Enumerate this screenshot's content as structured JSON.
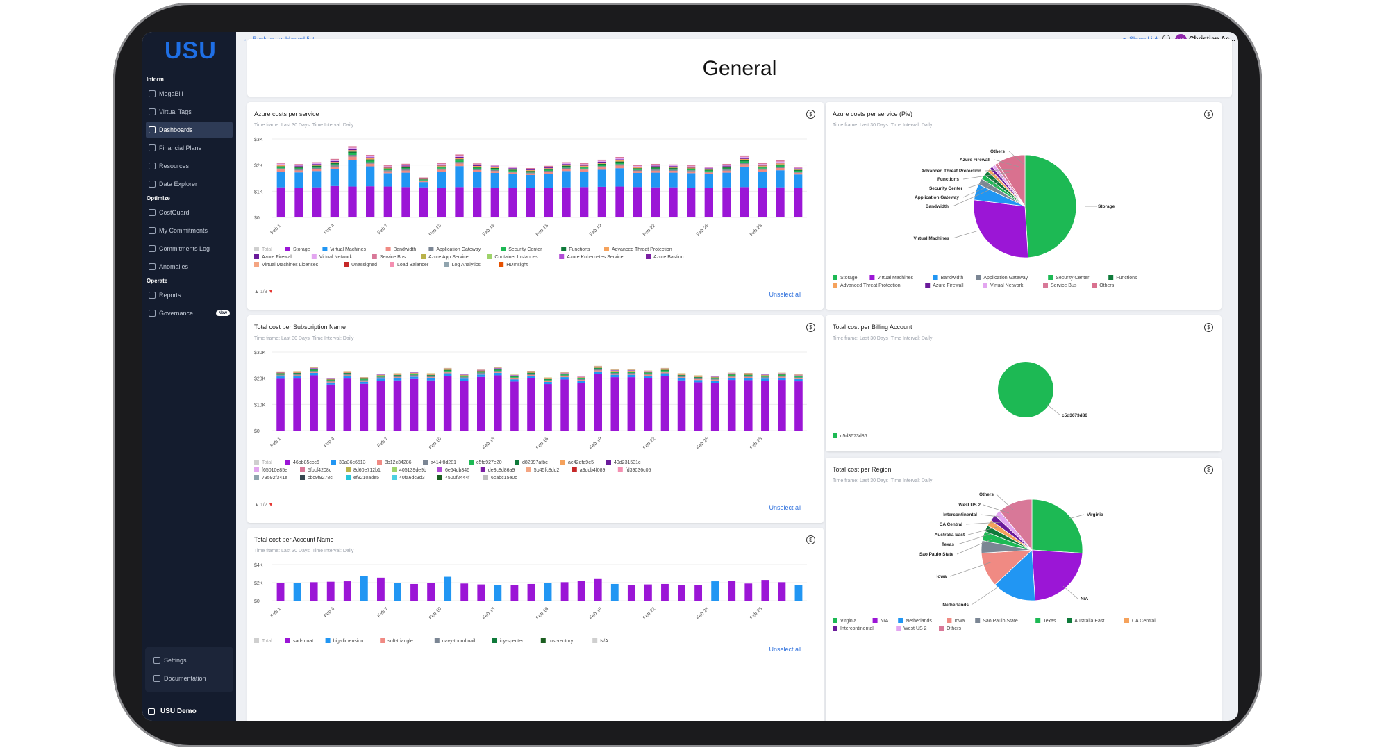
{
  "app": {
    "logo": "USU",
    "user_initials": "CA",
    "user_name": "Christian Ac...",
    "back_label": "Back to dashboard list",
    "share_label": "Share Link",
    "page_title": "General"
  },
  "sidebar": {
    "sections": [
      {
        "title": "Inform",
        "items": [
          {
            "label": "MegaBill"
          },
          {
            "label": "Virtual Tags"
          },
          {
            "label": "Dashboards",
            "active": true
          },
          {
            "label": "Financial Plans"
          },
          {
            "label": "Resources"
          },
          {
            "label": "Data Explorer"
          }
        ]
      },
      {
        "title": "Optimize",
        "items": [
          {
            "label": "CostGuard"
          },
          {
            "label": "My Commitments"
          },
          {
            "label": "Commitments Log"
          },
          {
            "label": "Anomalies"
          }
        ]
      },
      {
        "title": "Operate",
        "items": [
          {
            "label": "Reports"
          },
          {
            "label": "Governance",
            "badge": "New"
          }
        ]
      }
    ],
    "bottom": {
      "settings": "Settings",
      "documentation": "Documentation",
      "tenant": "USU Demo"
    }
  },
  "common": {
    "timeframe": "Time frame: Last 30 Days",
    "interval": "Time Interval: Daily",
    "unselect_all": "Unselect all"
  },
  "dates": [
    "Feb 1",
    "Feb 4",
    "Feb 7",
    "Feb 10",
    "Feb 13",
    "Feb 16",
    "Feb 19",
    "Feb 22",
    "Feb 25",
    "Feb 28"
  ],
  "cards": {
    "c1": {
      "title": "Azure costs per service",
      "pager": "1/3"
    },
    "c2": {
      "title": "Azure costs per service (Pie)"
    },
    "c3": {
      "title": "Total cost per Subscription Name",
      "pager": "1/2"
    },
    "c4": {
      "title": "Total cost per Billing Account"
    },
    "c5": {
      "title": "Total cost per Account Name"
    },
    "c6": {
      "title": "Total cost per Region"
    }
  },
  "chart_data": [
    {
      "type": "bar",
      "title": "Azure costs per service",
      "ylim": [
        0,
        3000
      ],
      "yticks": [
        "$0",
        "$1K",
        "$2K",
        "$3K"
      ],
      "categories_count": 30,
      "series": [
        {
          "name": "Virtual Machines",
          "color": "#9b16d6",
          "values": [
            1150,
            1130,
            1150,
            1200,
            1180,
            1190,
            1180,
            1160,
            1150,
            1140,
            1160,
            1150,
            1140,
            1130,
            1120,
            1130,
            1150,
            1160,
            1170,
            1180,
            1160,
            1150,
            1150,
            1140,
            1130,
            1150,
            1160,
            1140,
            1150,
            1140
          ]
        },
        {
          "name": "Storage",
          "color": "#2196f3",
          "values": [
            600,
            590,
            620,
            650,
            1020,
            760,
            510,
            550,
            200,
            600,
            800,
            580,
            560,
            520,
            500,
            540,
            620,
            590,
            650,
            700,
            540,
            560,
            560,
            550,
            520,
            560,
            780,
            600,
            650,
            500
          ]
        },
        {
          "name": "Bandwidth",
          "color": "#f08a83",
          "values": [
            80,
            75,
            80,
            90,
            120,
            100,
            70,
            80,
            40,
            80,
            100,
            75,
            70,
            65,
            60,
            70,
            80,
            75,
            90,
            100,
            70,
            75,
            70,
            70,
            65,
            75,
            95,
            80,
            85,
            65
          ]
        },
        {
          "name": "Application Gateway",
          "color": "#7b8694",
          "values": [
            45,
            40,
            45,
            50,
            70,
            60,
            40,
            45,
            25,
            45,
            60,
            45,
            40,
            40,
            35,
            40,
            45,
            40,
            50,
            55,
            40,
            45,
            40,
            40,
            40,
            45,
            55,
            45,
            50,
            40
          ]
        },
        {
          "name": "Security Center",
          "color": "#1db954",
          "values": [
            40,
            40,
            40,
            45,
            65,
            55,
            35,
            40,
            20,
            40,
            55,
            40,
            40,
            35,
            30,
            35,
            40,
            40,
            45,
            50,
            35,
            40,
            40,
            35,
            35,
            40,
            50,
            40,
            45,
            35
          ]
        },
        {
          "name": "Functions",
          "color": "#0f7a3a",
          "values": [
            40,
            35,
            40,
            45,
            60,
            50,
            35,
            40,
            20,
            40,
            50,
            40,
            35,
            35,
            30,
            35,
            40,
            35,
            45,
            50,
            35,
            40,
            35,
            35,
            30,
            40,
            50,
            40,
            45,
            35
          ]
        },
        {
          "name": "Advanced Threat Protection",
          "color": "#f5a25c",
          "values": [
            35,
            35,
            35,
            40,
            55,
            45,
            30,
            35,
            20,
            35,
            45,
            35,
            35,
            30,
            30,
            30,
            35,
            35,
            40,
            45,
            30,
            35,
            35,
            30,
            30,
            35,
            45,
            35,
            40,
            30
          ]
        },
        {
          "name": "Azure Firewall",
          "color": "#6a1b9a",
          "values": [
            30,
            30,
            30,
            35,
            50,
            40,
            30,
            30,
            15,
            30,
            40,
            30,
            30,
            25,
            25,
            30,
            30,
            30,
            35,
            40,
            30,
            30,
            30,
            30,
            25,
            30,
            40,
            30,
            35,
            25
          ]
        },
        {
          "name": "Virtual Network",
          "color": "#e3a6f0",
          "values": [
            30,
            30,
            30,
            35,
            45,
            40,
            25,
            30,
            15,
            30,
            40,
            30,
            30,
            25,
            25,
            25,
            30,
            30,
            35,
            40,
            25,
            30,
            30,
            25,
            25,
            30,
            40,
            30,
            35,
            25
          ]
        },
        {
          "name": "Service Bus",
          "color": "#d87898",
          "values": [
            40,
            35,
            40,
            45,
            60,
            50,
            35,
            40,
            20,
            40,
            55,
            40,
            35,
            35,
            30,
            35,
            40,
            35,
            45,
            50,
            35,
            40,
            35,
            35,
            30,
            40,
            50,
            40,
            45,
            35
          ]
        }
      ],
      "legend": [
        "Total",
        "Storage",
        "Virtual Machines",
        "Bandwidth",
        "Application Gateway",
        "Security Center",
        "Functions",
        "Advanced Threat Protection",
        "Azure Firewall",
        "Virtual Network",
        "Service Bus",
        "Azure App Service",
        "Container Instances",
        "Azure Kubernetes Service",
        "Azure Bastion",
        "Virtual Machines Licenses",
        "Unassigned",
        "Load Balancer",
        "Log Analytics",
        "HDInsight"
      ],
      "legend_colors": [
        "#cfcfcf",
        "#9b16d6",
        "#2196f3",
        "#f08a83",
        "#7b8694",
        "#1db954",
        "#0f7a3a",
        "#f5a25c",
        "#6a1b9a",
        "#e3a6f0",
        "#d87898",
        "#b9b24a",
        "#9ed36a",
        "#b14cd6",
        "#7b1fa2",
        "#f4a582",
        "#c62828",
        "#f48fb1",
        "#90a4ae",
        "#e65100"
      ]
    },
    {
      "type": "pie",
      "title": "Azure costs per service (Pie)",
      "slices": [
        {
          "label": "Storage",
          "value": 49,
          "color": "#1db954"
        },
        {
          "label": "Virtual Machines",
          "value": 28,
          "color": "#9b16d6"
        },
        {
          "label": "Bandwidth",
          "value": 5,
          "color": "#2196f3"
        },
        {
          "label": "Application Gateway",
          "value": 2,
          "color": "#7b8694"
        },
        {
          "label": "Security Center",
          "value": 1.5,
          "color": "#1db954"
        },
        {
          "label": "Functions",
          "value": 1.5,
          "color": "#0f7a3a"
        },
        {
          "label": "Advanced Threat Protection",
          "value": 1,
          "color": "#f5a25c"
        },
        {
          "label": "Azure Firewall",
          "value": 1,
          "color": "#6a1b9a"
        },
        {
          "label": "Virtual Network",
          "value": 1,
          "color": "#e3a6f0"
        },
        {
          "label": "Service Bus",
          "value": 1,
          "color": "#d87898"
        },
        {
          "label": "Others",
          "value": 9,
          "color": "#d9718f"
        }
      ],
      "outer_labels": [
        "Others",
        "Azure Firewall",
        "Advanced Threat Protection",
        "Functions",
        "Security Center",
        "Application Gateway",
        "Bandwidth",
        "Storage",
        "Virtual Machines"
      ],
      "legend": [
        "Storage",
        "Virtual Machines",
        "Bandwidth",
        "Application Gateway",
        "Security Center",
        "Functions",
        "Advanced Threat Protection",
        "Azure Firewall",
        "Virtual Network",
        "Service Bus",
        "Others"
      ]
    },
    {
      "type": "bar",
      "title": "Total cost per Subscription Name",
      "ylim": [
        0,
        30000
      ],
      "yticks": [
        "$0",
        "$10K",
        "$20K",
        "$30K"
      ],
      "totals": [
        22500,
        22600,
        24000,
        20000,
        22600,
        20300,
        21600,
        21800,
        22400,
        21800,
        23800,
        21600,
        23300,
        24000,
        21300,
        22700,
        20200,
        22200,
        20700,
        24600,
        23200,
        23200,
        22800,
        23800,
        21800,
        21000,
        20800,
        22000,
        21900,
        21600,
        22000,
        21400
      ],
      "series_colors": [
        "#9b16d6",
        "#2196f3",
        "#f08a83",
        "#7b8694",
        "#1db954",
        "#0f7a3a",
        "#f5a25c",
        "#6a1b9a",
        "#e3a6f0",
        "#d87898",
        "#b9b24a"
      ],
      "legend": [
        "Total",
        "46bb85ccc6",
        "30a36c6513",
        "8b12c34286",
        "a414f8d281",
        "c5fd927e20",
        "d82997afbe",
        "ae42dfa9e5",
        "40d231531c",
        "f65010e85e",
        "5fbcf4208c",
        "8d60e712b1",
        "405139de9b",
        "6e64db346",
        "de3c8d86a9",
        "5b45fc8dd2",
        "a9dcb4f089",
        "fd39036c05",
        "73592f341e",
        "cbc9f9278c",
        "ef8210ade5",
        "40fa6dc3d3",
        "4500f2444f",
        "6cabc15e0c"
      ],
      "legend_colors": [
        "#cfcfcf",
        "#9b16d6",
        "#2196f3",
        "#f08a83",
        "#7b8694",
        "#1db954",
        "#0f7a3a",
        "#f5a25c",
        "#6a1b9a",
        "#e3a6f0",
        "#d87898",
        "#b9b24a",
        "#9ed36a",
        "#b14cd6",
        "#7b1fa2",
        "#f4a582",
        "#c62828",
        "#f48fb1",
        "#90a4ae",
        "#37474f",
        "#26c6da",
        "#4dd0e1",
        "#1b5e20",
        "#bdbdbd"
      ]
    },
    {
      "type": "pie",
      "title": "Total cost per Billing Account",
      "slices": [
        {
          "label": "c5d3673d86",
          "value": 100,
          "color": "#1db954"
        }
      ]
    },
    {
      "type": "bar",
      "title": "Total cost per Account Name",
      "ylim": [
        0,
        4000
      ],
      "yticks": [
        "$0",
        "$2K",
        "$4K"
      ],
      "values": [
        1950,
        1950,
        2050,
        2100,
        2150,
        2700,
        2550,
        1950,
        1850,
        1950,
        2650,
        1900,
        1800,
        1700,
        1750,
        1850,
        1950,
        2050,
        2200,
        2400,
        1850,
        1750,
        1800,
        1850,
        1750,
        1700,
        2150,
        2200,
        1900,
        2300,
        2050,
        1750
      ],
      "colors": [
        "#9b16d6",
        "#2196f3",
        "#9b16d6",
        "#9b16d6",
        "#9b16d6",
        "#2196f3",
        "#9b16d6",
        "#2196f3",
        "#9b16d6",
        "#9b16d6",
        "#2196f3",
        "#9b16d6",
        "#9b16d6",
        "#2196f3",
        "#9b16d6",
        "#9b16d6",
        "#2196f3",
        "#9b16d6",
        "#9b16d6",
        "#9b16d6",
        "#2196f3",
        "#9b16d6",
        "#9b16d6",
        "#9b16d6",
        "#9b16d6",
        "#9b16d6",
        "#2196f3",
        "#9b16d6",
        "#9b16d6",
        "#9b16d6",
        "#9b16d6",
        "#2196f3"
      ],
      "legend": [
        "Total",
        "sad-moat",
        "big-dimension",
        "soft-triangle",
        "navy-thumbnail",
        "icy-specter",
        "rust-rectory",
        "N/A"
      ],
      "legend_colors": [
        "#cfcfcf",
        "#9b16d6",
        "#2196f3",
        "#f08a83",
        "#7b8694",
        "#0f7a3a",
        "#1b5e20",
        "#cfcfcf"
      ]
    },
    {
      "type": "pie",
      "title": "Total cost per Region",
      "slices": [
        {
          "label": "Virginia",
          "value": 26,
          "color": "#1db954"
        },
        {
          "label": "N/A",
          "value": 23,
          "color": "#9b16d6"
        },
        {
          "label": "Netherlands",
          "value": 14,
          "color": "#2196f3"
        },
        {
          "label": "Iowa",
          "value": 11,
          "color": "#f08a83"
        },
        {
          "label": "Sao Paulo State",
          "value": 4,
          "color": "#7b8694"
        },
        {
          "label": "Texas",
          "value": 3,
          "color": "#1db954"
        },
        {
          "label": "Australia East",
          "value": 2,
          "color": "#0f7a3a"
        },
        {
          "label": "CA Central",
          "value": 2,
          "color": "#f5a25c"
        },
        {
          "label": "Intercontinental",
          "value": 2,
          "color": "#6a1b9a"
        },
        {
          "label": "West US 2",
          "value": 2,
          "color": "#e3a6f0"
        },
        {
          "label": "Others",
          "value": 11,
          "color": "#d87898"
        }
      ],
      "outer_labels": [
        "Others",
        "West US 2",
        "Intercontinental",
        "CA Central",
        "Australia East",
        "Texas",
        "Sao Paulo State",
        "Iowa",
        "Netherlands",
        "Virginia",
        "N/A"
      ],
      "legend": [
        "Virginia",
        "N/A",
        "Netherlands",
        "Iowa",
        "Sao Paulo State",
        "Texas",
        "Australia East",
        "CA Central",
        "Intercontinental",
        "West US 2",
        "Others"
      ]
    }
  ]
}
